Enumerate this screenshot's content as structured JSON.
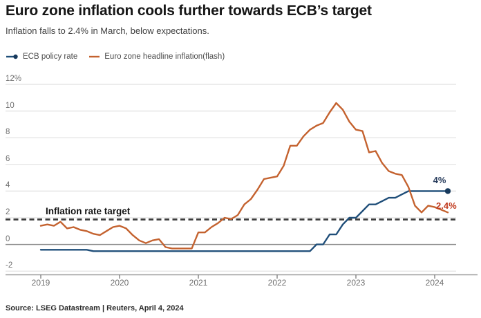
{
  "header": {
    "title": "Euro zone inflation cools further towards ECB’s target",
    "subtitle": "Inflation falls to 2.4% in March, below expectations."
  },
  "legend": [
    {
      "label": "ECB policy rate",
      "color": "#1f4e79",
      "marker": "line-dot"
    },
    {
      "label": "Euro zone headline inflation(flash)",
      "color": "#c4622f",
      "marker": "line"
    }
  ],
  "annotations": {
    "target_label": "Inflation rate target",
    "policy_end_label": "4%",
    "inflation_end_label": "2.4%"
  },
  "source": {
    "text": "Source: LSEG Datastream | Reuters, April 4, 2024"
  },
  "colors": {
    "policy_line": "#1f4e79",
    "policy_dot": "#17395c",
    "policy_label": "#2a3e5e",
    "inflation_line": "#c4622f",
    "inflation_label": "#c03a1d",
    "target_dash": "#3d3d3d",
    "gridline": "#e0e0e0",
    "zero_line": "#8a8a8a",
    "axis_line": "#9b9b9b"
  },
  "chart_data": {
    "type": "line",
    "title": "Euro zone inflation cools further towards ECB’s target",
    "x_start": "2019-01",
    "x_end": "2024-03",
    "x_frequency": "monthly",
    "x_tick_labels": [
      "2019",
      "2020",
      "2021",
      "2022",
      "2023",
      "2024"
    ],
    "y_tick_labels": [
      "12%",
      "10",
      "8",
      "6",
      "4",
      "2",
      "0",
      "-2"
    ],
    "y_ticks": [
      12,
      10,
      8,
      6,
      4,
      2,
      0,
      -2
    ],
    "ylim": [
      -2.6,
      12.6
    ],
    "grid": "horizontal",
    "legend_position": "top-left",
    "target_line_value": 2,
    "series": [
      {
        "name": "ECB policy rate",
        "color": "#1f4e79",
        "end_marker": "dot",
        "end_value": 4.0,
        "values": [
          -0.4,
          -0.4,
          -0.4,
          -0.4,
          -0.4,
          -0.4,
          -0.4,
          -0.4,
          -0.5,
          -0.5,
          -0.5,
          -0.5,
          -0.5,
          -0.5,
          -0.5,
          -0.5,
          -0.5,
          -0.5,
          -0.5,
          -0.5,
          -0.5,
          -0.5,
          -0.5,
          -0.5,
          -0.5,
          -0.5,
          -0.5,
          -0.5,
          -0.5,
          -0.5,
          -0.5,
          -0.5,
          -0.5,
          -0.5,
          -0.5,
          -0.5,
          -0.5,
          -0.5,
          -0.5,
          -0.5,
          -0.5,
          -0.5,
          0.0,
          0.0,
          0.75,
          0.75,
          1.5,
          2.0,
          2.0,
          2.5,
          3.0,
          3.0,
          3.25,
          3.5,
          3.5,
          3.75,
          4.0,
          4.0,
          4.0,
          4.0,
          4.0,
          4.0,
          4.0
        ]
      },
      {
        "name": "Euro zone headline inflation(flash)",
        "color": "#c4622f",
        "end_marker": "none",
        "end_value": 2.4,
        "values": [
          1.4,
          1.5,
          1.4,
          1.7,
          1.2,
          1.3,
          1.1,
          1.0,
          0.8,
          0.7,
          1.0,
          1.3,
          1.4,
          1.2,
          0.7,
          0.3,
          0.1,
          0.3,
          0.4,
          -0.2,
          -0.3,
          -0.3,
          -0.3,
          -0.3,
          0.9,
          0.9,
          1.3,
          1.6,
          2.0,
          1.9,
          2.2,
          3.0,
          3.4,
          4.1,
          4.9,
          5.0,
          5.1,
          5.9,
          7.4,
          7.4,
          8.1,
          8.6,
          8.9,
          9.1,
          9.9,
          10.6,
          10.1,
          9.2,
          8.6,
          8.5,
          6.9,
          7.0,
          6.1,
          5.5,
          5.3,
          5.2,
          4.3,
          2.9,
          2.4,
          2.9,
          2.8,
          2.6,
          2.4
        ]
      }
    ]
  }
}
